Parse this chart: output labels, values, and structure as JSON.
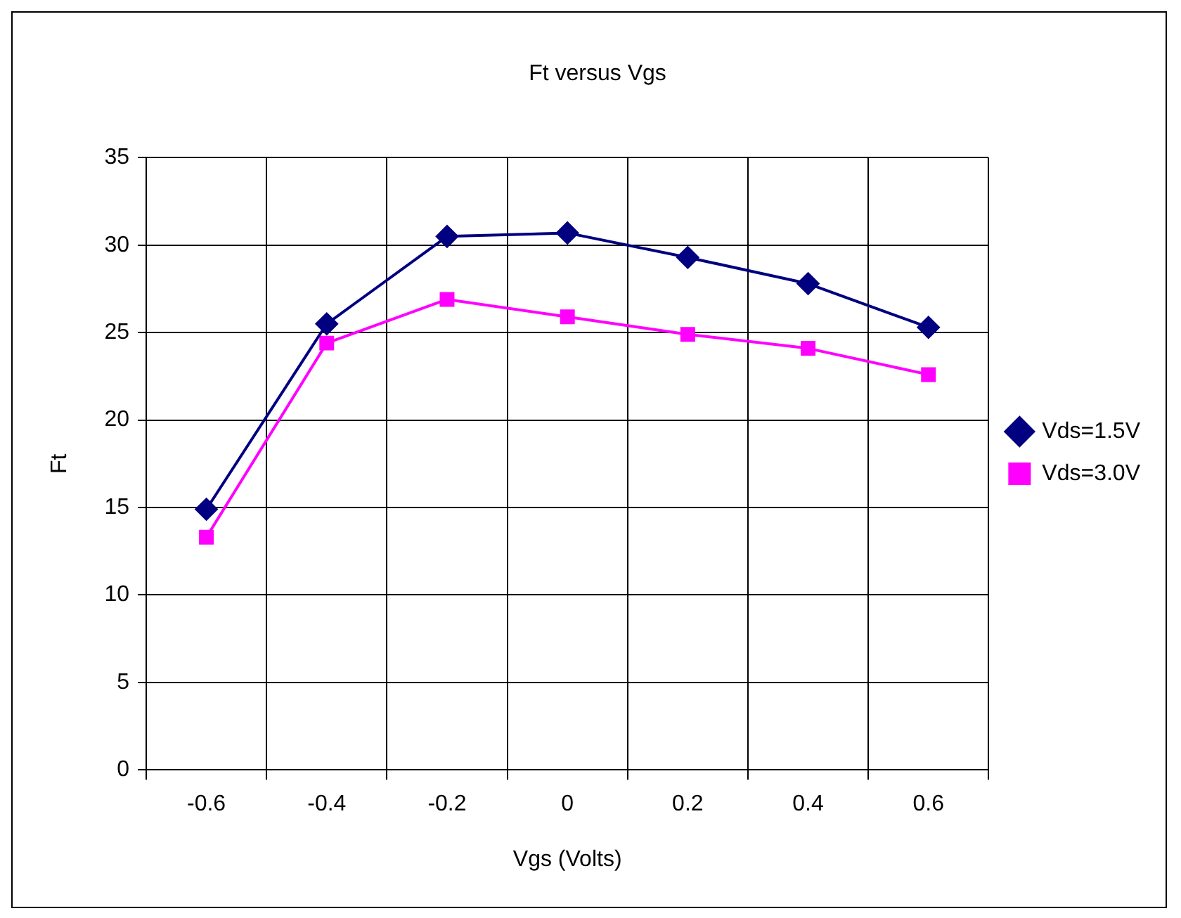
{
  "chart_data": {
    "type": "line",
    "title": "Ft versus Vgs",
    "xlabel": "Vgs (Volts)",
    "ylabel": "Ft",
    "categories": [
      "-0.6",
      "-0.4",
      "-0.2",
      "0",
      "0.2",
      "0.4",
      "0.6"
    ],
    "series": [
      {
        "name": "Vds=1.5V",
        "color": "#000080",
        "marker": "diamond",
        "values": [
          14.9,
          25.5,
          30.5,
          30.7,
          29.3,
          27.8,
          25.3
        ]
      },
      {
        "name": "Vds=3.0V",
        "color": "#ff00ff",
        "marker": "square",
        "values": [
          13.3,
          24.4,
          26.9,
          25.9,
          24.9,
          24.1,
          22.6
        ]
      }
    ],
    "ylim": [
      0,
      35
    ],
    "yticks": [
      0,
      5,
      10,
      15,
      20,
      25,
      30,
      35
    ],
    "grid": true,
    "legend": "right",
    "line_style": "solid"
  }
}
